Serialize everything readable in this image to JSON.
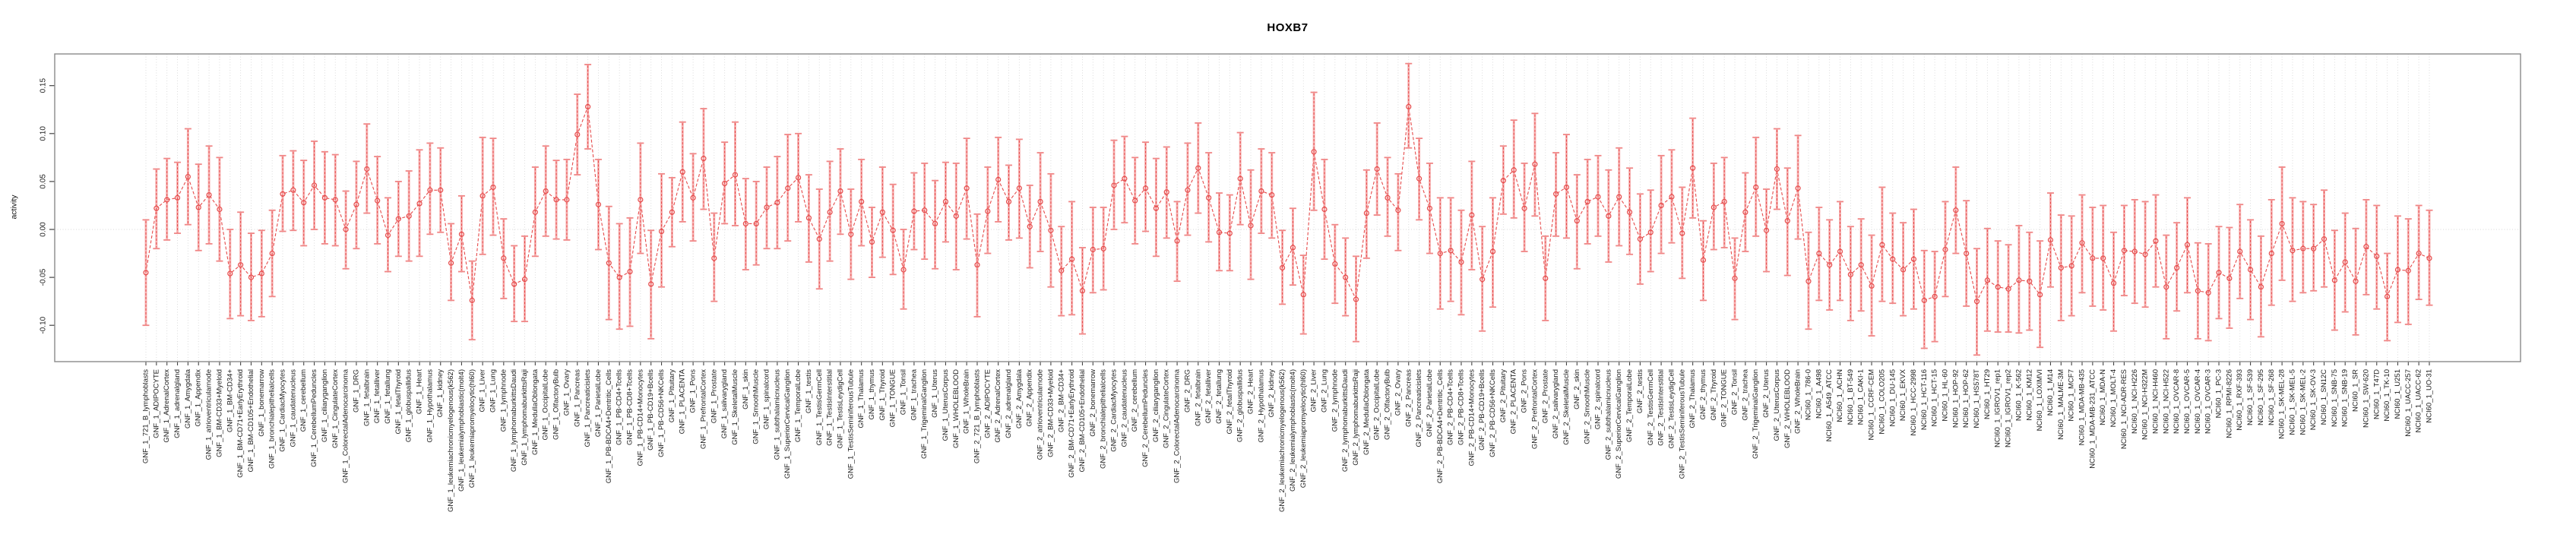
{
  "title": "HOXB7",
  "chart_data": {
    "type": "scatter",
    "connected": true,
    "error_bars": true,
    "title": "HOXB7",
    "xlabel": "",
    "ylabel": "activity",
    "ylim": [
      -0.138,
      0.183
    ],
    "yticks": [
      0.15,
      0.1,
      0.05,
      0.0,
      -0.05,
      -0.1
    ],
    "ytick_labels": [
      "0.15",
      "0.10",
      "0.05",
      "0.00",
      "-0.05",
      "-0.10"
    ],
    "layout_hints": {
      "legend": "none",
      "grid": "vertical-dotted-per-category-plus-zero-line",
      "marker": "open-circle",
      "line_style": "dashed",
      "x_labels_rotated": 90
    },
    "colors": {
      "series": "#e64b4b",
      "bar": "#f6a2a2",
      "cap": "#f08686",
      "grid": "#d8d8d8",
      "zero_line": "#d8d8d8",
      "box_border": "#8a8a8a",
      "tick": "#444444",
      "label": "#1a1a1a"
    },
    "categories": [
      "GNF_1_721_B_lymphoblasts",
      "GNF_1_ADIPOCYTE",
      "GNF_1_AdrenalCortex",
      "GNF_1_adrenalgland",
      "GNF_1_Amygdala",
      "GNF_1_Appendix",
      "GNF_1_atrioventricularnode",
      "GNF_1_BM-CD33+Myeloid",
      "GNF_1_BM-CD34+",
      "GNF_1_BM-CD71+EarlyErythroid",
      "GNF_1_BM-CD105+Endothelial",
      "GNF_1_bonemarrow",
      "GNF_1_bronchialepithelialcells",
      "GNF_1_CardiacMyocytes",
      "GNF_1_caudatenucleus",
      "GNF_1_cerebellum",
      "GNF_1_CerebellumPeduncles",
      "GNF_1_ciliaryganglion",
      "GNF_1_CingulateCortex",
      "GNF_1_ColorectalAdenocarcinoma",
      "GNF_1_DRG",
      "GNF_1_fetalbrain",
      "GNF_1_fetalliver",
      "GNF_1_fetallung",
      "GNF_1_fetalThyroid",
      "GNF_1_globuspallidus",
      "GNF_1_Heart",
      "GNF_1_Hypothalamus",
      "GNF_1_kidney",
      "GNF_1_leukemiachronicmyelogenous(k562)",
      "GNF_1_leukemialymphoblastic(molt4)",
      "GNF_1_leukemiapromyelocytic(hl60)",
      "GNF_1_Liver",
      "GNF_1_Lung",
      "GNF_1_lymphnode",
      "GNF_1_lymphomaburkittsDaudi",
      "GNF_1_lymphomaburkittsRaji",
      "GNF_1_MedullaOblongata",
      "GNF_1_OccipitalLobe",
      "GNF_1_OlfactoryBulb",
      "GNF_1_Ovary",
      "GNF_1_Pancreas",
      "GNF_1_Pancreaticislets",
      "GNF_1_ParietalLobe",
      "GNF_1_PB-BDCA4+Dentritic_Cells",
      "GNF_1_PB-CD4+Tcells",
      "GNF_1_PB-CD8+Tcells",
      "GNF_1_PB-CD14+Monocytes",
      "GNF_1_PB-CD19+Bcells",
      "GNF_1_PB-CD56+NKCells",
      "GNF_1_Pituitary",
      "GNF_1_PLACENTA",
      "GNF_1_Pons",
      "GNF_1_PrefrontalCortex",
      "GNF_1_Prostate",
      "GNF_1_salivarygland",
      "GNF_1_SkeletalMuscle",
      "GNF_1_skin",
      "GNF_1_SmoothMuscle",
      "GNF_1_spinalcord",
      "GNF_1_subthalamicnucleus",
      "GNF_1_SuperiorCervicalGanglion",
      "GNF_1_TemporalLobe",
      "GNF_1_testis",
      "GNF_1_TestisGermCell",
      "GNF_1_TestisInterstitial",
      "GNF_1_TestisLeydigCell",
      "GNF_1_TestisSeminiferousTubule",
      "GNF_1_Thalamus",
      "GNF_1_thymus",
      "GNF_1_Thyroid",
      "GNF_1_TONGUE",
      "GNF_1_Tonsil",
      "GNF_1_trachea",
      "GNF_1_TrigeminalGanglion",
      "GNF_1_Uterus",
      "GNF_1_UterusCorpus",
      "GNF_1_WHOLEBLOOD",
      "GNF_1_WholeBrain",
      "GNF_2_721_B_lymphoblasts",
      "GNF_2_ADIPOCYTE",
      "GNF_2_AdrenalCortex",
      "GNF_2_adrenalgland",
      "GNF_2_Amygdala",
      "GNF_2_Appendix",
      "GNF_2_atrioventricularnode",
      "GNF_2_BM-CD33+Myeloid",
      "GNF_2_BM-CD34+",
      "GNF_2_BM-CD71+EarlyErythroid",
      "GNF_2_BM-CD105+Endothelial",
      "GNF_2_bonemarrow",
      "GNF_2_bronchialepithelialcells",
      "GNF_2_CardiacMyocytes",
      "GNF_2_caudatenucleus",
      "GNF_2_cerebellum",
      "GNF_2_CerebellumPeduncles",
      "GNF_2_ciliaryganglion",
      "GNF_2_CingulateCortex",
      "GNF_2_ColorectalAdenocarcinoma",
      "GNF_2_DRG",
      "GNF_2_fetalbrain",
      "GNF_2_fetalliver",
      "GNF_2_fetallung",
      "GNF_2_fetalThyroid",
      "GNF_2_globuspallidus",
      "GNF_2_Heart",
      "GNF_2_Hypothalamus",
      "GNF_2_kidney",
      "GNF_2_leukemiachronicmyelogenous(k562)",
      "GNF_2_leukemialymphoblastic(molt4)",
      "GNF_2_leukemiapromyelocytic(hl60)",
      "GNF_2_Liver",
      "GNF_2_Lung",
      "GNF_2_lymphnode",
      "GNF_2_lymphomaburkittsDaudi",
      "GNF_2_lymphomaburkittsRaji",
      "GNF_2_MedullaOblongata",
      "GNF_2_OccipitalLobe",
      "GNF_2_OlfactoryBulb",
      "GNF_2_Ovary",
      "GNF_2_Pancreas",
      "GNF_2_Pancreaticislets",
      "GNF_2_ParietalLobe",
      "GNF_2_PB-BDCA4+Dentritic_Cells",
      "GNF_2_PB-CD4+Tcells",
      "GNF_2_PB-CD8+Tcells",
      "GNF_2_PB-CD14+Monocytes",
      "GNF_2_PB-CD19+Bcells",
      "GNF_2_PB-CD56+NKCells",
      "GNF_2_Pituitary",
      "GNF_2_PLACENTA",
      "GNF_2_Pons",
      "GNF_2_PrefrontalCortex",
      "GNF_2_Prostate",
      "GNF_2_salivarygland",
      "GNF_2_SkeletalMuscle",
      "GNF_2_skin",
      "GNF_2_SmoothMuscle",
      "GNF_2_spinalcord",
      "GNF_2_subthalamicnucleus",
      "GNF_2_SuperiorCervicalGanglion",
      "GNF_2_TemporalLobe",
      "GNF_2_testis",
      "GNF_2_TestisGermCell",
      "GNF_2_TestisInterstitial",
      "GNF_2_TestisLeydigCell",
      "GNF_2_TestisSeminiferousTubule",
      "GNF_2_Thalamus",
      "GNF_2_thymus",
      "GNF_2_Thyroid",
      "GNF_2_TONGUE",
      "GNF_2_Tonsil",
      "GNF_2_trachea",
      "GNF_2_TrigeminalGanglion",
      "GNF_2_Uterus",
      "GNF_2_UterusCorpus",
      "GNF_2_WHOLEBLOOD",
      "GNF_2_WholeBrain",
      "NCI60_1_786-0",
      "NCI60_1_A498",
      "NCI60_1_A549_ATCC",
      "NCI60_1_ACHN",
      "NCI60_1_BT-549",
      "NCI60_1_CAKI-1",
      "NCI60_1_CCRF-CEM",
      "NCI60_1_COLO205",
      "NCI60_1_DU-145",
      "NCI60_1_EKVX",
      "NCI60_1_HCC-2998",
      "NCI60_1_HCT-116",
      "NCI60_1_HCT-15",
      "NCI60_1_HL-60",
      "NCI60_1_HOP-92",
      "NCI60_1_HOP-62",
      "NCI60_1_HS578T",
      "NCI60_1_HT29",
      "NCI60_1_IGROV1_rep1",
      "NCI60_1_IGROV1_rep2",
      "NCI60_1_K-562",
      "NCI60_1_KM12",
      "NCI60_1_LOXIMVI",
      "NCI60_1_M14",
      "NCI60_1_MALME-3M",
      "NCI60_1_MCF7",
      "NCI60_1_MDA-MB-435",
      "NCI60_1_MDA-MB-231_ATCC",
      "NCI60_1_MDA-N",
      "NCI60_1_MOLT-4",
      "NCI60_1_NCI-ADR-RES",
      "NCI60_1_NCI-H226",
      "NCI60_1_NCI-H322M",
      "NCI60_1_NCI-H460",
      "NCI60_1_NCI-H522",
      "NCI60_1_OVCAR-8",
      "NCI60_1_OVCAR-5",
      "NCI60_1_OVCAR-4",
      "NCI60_1_OVCAR-3",
      "NCI60_1_PC-3",
      "NCI60_1_RPMI-8226",
      "NCI60_1_RXF-393",
      "NCI60_1_SF-539",
      "NCI60_1_SF-295",
      "NCI60_1_SF-268",
      "NCI60_1_SK-MEL-28",
      "NCI60_1_SK-MEL-5",
      "NCI60_1_SK-MEL-2",
      "NCI60_1_SK-OV-3",
      "NCI60_1_SN12C",
      "NCI60_1_SNB-75",
      "NCI60_1_SNB-19",
      "NCI60_1_SR",
      "NCI60_1_SW-620",
      "NCI60_1_T47D",
      "NCI60_1_TK-10",
      "NCI60_1_U251",
      "NCI60_1_UACC-257",
      "NCI60_1_UACC-62",
      "NCI60_1_UO-31"
    ],
    "values": [
      -0.045,
      0.022,
      0.031,
      0.033,
      0.055,
      0.023,
      0.036,
      0.021,
      -0.046,
      -0.037,
      -0.05,
      -0.046,
      -0.025,
      0.037,
      0.041,
      0.028,
      0.046,
      0.033,
      0.031,
      0.0,
      0.026,
      0.063,
      0.03,
      -0.006,
      0.011,
      0.014,
      0.027,
      0.041,
      0.041,
      -0.035,
      -0.005,
      -0.074,
      0.035,
      0.044,
      -0.03,
      -0.057,
      -0.052,
      0.018,
      0.04,
      0.031,
      0.031,
      0.099,
      0.128,
      0.026,
      -0.035,
      -0.05,
      -0.044,
      0.031,
      -0.057,
      -0.002,
      0.018,
      0.06,
      0.033,
      0.074,
      -0.03,
      0.048,
      0.057,
      0.006,
      0.006,
      0.023,
      0.028,
      0.043,
      0.054,
      0.012,
      -0.01,
      0.018,
      0.04,
      -0.005,
      0.029,
      -0.013,
      0.018,
      -0.001,
      -0.042,
      0.019,
      0.02,
      0.006,
      0.029,
      0.014,
      0.043,
      -0.037,
      0.019,
      0.052,
      0.029,
      0.043,
      0.003,
      0.029,
      -0.001,
      -0.043,
      -0.031,
      -0.064,
      -0.021,
      -0.02,
      0.046,
      0.053,
      0.03,
      0.043,
      0.022,
      0.039,
      -0.012,
      0.041,
      0.064,
      0.033,
      -0.003,
      -0.004,
      0.053,
      0.004,
      0.04,
      0.036,
      -0.04,
      -0.019,
      -0.068,
      0.081,
      0.021,
      -0.036,
      -0.05,
      -0.073,
      0.017,
      0.063,
      0.033,
      0.02,
      0.128,
      0.053,
      0.022,
      -0.025,
      -0.022,
      -0.034,
      0.015,
      -0.052,
      -0.023,
      0.051,
      0.062,
      0.022,
      0.068,
      -0.051,
      0.037,
      0.044,
      0.009,
      0.029,
      0.034,
      0.014,
      0.034,
      0.018,
      -0.01,
      -0.003,
      0.025,
      0.034,
      -0.004,
      0.064,
      -0.032,
      0.023,
      0.029,
      -0.051,
      0.018,
      0.044,
      -0.001,
      0.063,
      0.009,
      0.043,
      -0.054,
      -0.025,
      -0.037,
      -0.023,
      -0.047,
      -0.037,
      -0.059,
      -0.016,
      -0.031,
      -0.042,
      -0.031,
      -0.074,
      -0.07,
      -0.021,
      0.02,
      -0.025,
      -0.075,
      -0.053,
      -0.06,
      -0.062,
      -0.053,
      -0.054,
      -0.068,
      -0.011,
      -0.04,
      -0.038,
      -0.014,
      -0.03,
      -0.03,
      -0.056,
      -0.022,
      -0.023,
      -0.026,
      -0.012,
      -0.06,
      -0.04,
      -0.016,
      -0.064,
      -0.066,
      -0.045,
      -0.051,
      -0.023,
      -0.042,
      -0.06,
      -0.025,
      0.006,
      -0.022,
      -0.02,
      -0.02,
      -0.01,
      -0.053,
      -0.034,
      -0.054,
      -0.018,
      -0.028,
      -0.07,
      -0.042,
      -0.043,
      -0.025,
      -0.03
    ],
    "err_lo": [
      -0.1,
      -0.02,
      -0.011,
      -0.004,
      0.005,
      -0.022,
      -0.015,
      -0.033,
      -0.093,
      -0.09,
      -0.095,
      -0.091,
      -0.07,
      -0.002,
      -0.001,
      -0.017,
      0.0,
      -0.015,
      -0.017,
      -0.041,
      -0.02,
      0.017,
      -0.015,
      -0.044,
      -0.028,
      -0.033,
      -0.028,
      -0.005,
      -0.003,
      -0.074,
      -0.044,
      -0.115,
      -0.026,
      -0.006,
      -0.072,
      -0.096,
      -0.096,
      -0.028,
      -0.007,
      -0.01,
      -0.011,
      0.057,
      0.084,
      -0.021,
      -0.094,
      -0.104,
      -0.101,
      -0.025,
      -0.114,
      -0.06,
      -0.018,
      0.008,
      -0.012,
      0.021,
      -0.075,
      0.006,
      0.004,
      -0.042,
      -0.037,
      -0.02,
      -0.02,
      -0.012,
      0.008,
      -0.034,
      -0.062,
      -0.033,
      -0.005,
      -0.052,
      -0.017,
      -0.05,
      -0.029,
      -0.047,
      -0.083,
      -0.021,
      -0.031,
      -0.041,
      -0.013,
      -0.042,
      -0.01,
      -0.091,
      -0.025,
      0.008,
      -0.011,
      -0.009,
      -0.04,
      -0.023,
      -0.06,
      -0.09,
      -0.089,
      -0.109,
      -0.066,
      -0.063,
      0.0,
      0.007,
      -0.015,
      -0.002,
      -0.028,
      -0.009,
      -0.054,
      -0.006,
      0.017,
      -0.013,
      -0.043,
      -0.043,
      0.005,
      -0.052,
      -0.004,
      -0.009,
      -0.078,
      -0.058,
      -0.109,
      0.02,
      -0.031,
      -0.077,
      -0.09,
      -0.117,
      -0.03,
      0.015,
      -0.007,
      -0.022,
      0.085,
      0.01,
      -0.025,
      -0.083,
      -0.075,
      -0.089,
      -0.042,
      -0.106,
      -0.081,
      0.016,
      0.012,
      -0.023,
      0.014,
      -0.095,
      -0.007,
      -0.009,
      -0.041,
      -0.015,
      -0.007,
      -0.034,
      -0.017,
      -0.026,
      -0.057,
      -0.044,
      -0.025,
      -0.014,
      -0.051,
      0.012,
      -0.074,
      -0.021,
      -0.019,
      -0.094,
      -0.023,
      -0.007,
      -0.044,
      0.021,
      -0.048,
      -0.01,
      -0.104,
      -0.074,
      -0.084,
      -0.074,
      -0.095,
      -0.085,
      -0.111,
      -0.075,
      -0.077,
      -0.09,
      -0.083,
      -0.124,
      -0.117,
      -0.07,
      -0.025,
      -0.08,
      -0.131,
      -0.106,
      -0.107,
      -0.107,
      -0.108,
      -0.105,
      -0.123,
      -0.06,
      -0.095,
      -0.09,
      -0.066,
      -0.08,
      -0.084,
      -0.106,
      -0.069,
      -0.077,
      -0.081,
      -0.06,
      -0.114,
      -0.085,
      -0.066,
      -0.114,
      -0.116,
      -0.093,
      -0.103,
      -0.072,
      -0.094,
      -0.112,
      -0.079,
      -0.053,
      -0.075,
      -0.066,
      -0.064,
      -0.06,
      -0.105,
      -0.086,
      -0.11,
      -0.068,
      -0.083,
      -0.116,
      -0.097,
      -0.099,
      -0.073,
      -0.079
    ],
    "err_hi": [
      0.01,
      0.063,
      0.074,
      0.07,
      0.105,
      0.068,
      0.087,
      0.075,
      0.0,
      0.018,
      -0.004,
      -0.001,
      0.02,
      0.077,
      0.082,
      0.072,
      0.092,
      0.081,
      0.078,
      0.04,
      0.071,
      0.11,
      0.076,
      0.033,
      0.05,
      0.061,
      0.083,
      0.09,
      0.085,
      0.006,
      0.035,
      -0.033,
      0.096,
      0.095,
      0.011,
      -0.017,
      -0.007,
      0.065,
      0.087,
      0.072,
      0.073,
      0.141,
      0.172,
      0.073,
      0.024,
      0.006,
      0.012,
      0.09,
      -0.001,
      0.058,
      0.054,
      0.112,
      0.079,
      0.126,
      0.017,
      0.091,
      0.112,
      0.053,
      0.05,
      0.065,
      0.076,
      0.099,
      0.1,
      0.057,
      0.042,
      0.071,
      0.084,
      0.042,
      0.073,
      0.023,
      0.065,
      0.047,
      0.0,
      0.059,
      0.069,
      0.051,
      0.07,
      0.069,
      0.095,
      0.016,
      0.065,
      0.096,
      0.067,
      0.094,
      0.046,
      0.08,
      0.058,
      0.003,
      0.029,
      -0.019,
      0.023,
      0.023,
      0.093,
      0.097,
      0.075,
      0.091,
      0.074,
      0.086,
      0.029,
      0.09,
      0.111,
      0.08,
      0.038,
      0.036,
      0.101,
      0.062,
      0.084,
      0.08,
      -0.001,
      0.022,
      -0.027,
      0.143,
      0.073,
      0.005,
      -0.009,
      -0.028,
      0.062,
      0.111,
      0.075,
      0.058,
      0.173,
      0.095,
      0.069,
      0.033,
      0.033,
      0.02,
      0.071,
      0.003,
      0.033,
      0.087,
      0.114,
      0.069,
      0.121,
      -0.007,
      0.08,
      0.099,
      0.057,
      0.073,
      0.077,
      0.062,
      0.085,
      0.064,
      0.037,
      0.041,
      0.077,
      0.083,
      0.044,
      0.116,
      0.009,
      0.069,
      0.075,
      -0.009,
      0.059,
      0.096,
      0.042,
      0.105,
      0.064,
      0.098,
      -0.003,
      0.023,
      0.01,
      0.029,
      0.003,
      0.011,
      -0.006,
      0.044,
      0.017,
      0.007,
      0.021,
      -0.022,
      -0.023,
      0.029,
      0.065,
      0.03,
      -0.02,
      0.001,
      -0.012,
      -0.016,
      0.004,
      -0.003,
      -0.012,
      0.038,
      0.015,
      0.014,
      0.036,
      0.023,
      0.025,
      -0.003,
      0.025,
      0.031,
      0.029,
      0.036,
      -0.006,
      0.007,
      0.033,
      -0.014,
      -0.015,
      0.003,
      0.002,
      0.026,
      0.01,
      -0.007,
      0.031,
      0.065,
      0.033,
      0.029,
      0.026,
      0.041,
      -0.001,
      0.017,
      0.001,
      0.031,
      0.025,
      -0.025,
      0.014,
      0.011,
      0.025,
      0.02
    ]
  }
}
